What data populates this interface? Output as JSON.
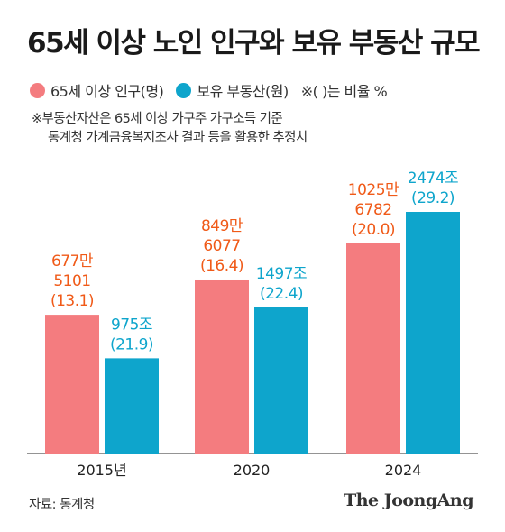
{
  "title": "65세 이상 노인 인구와 보유 부동산 규모",
  "legend": {
    "series1": "65세 이상 인구(명)",
    "series2": "보유 부동산(원)",
    "ratio_note": "※( )는 비율 %"
  },
  "note": {
    "line1": "※부동산자산은 65세 이상 가구주 가구소득 기준",
    "line2": "통계청 가계금융복지조사 결과 등을 활용한 추정치"
  },
  "source": "자료: 통계청",
  "brand": "The JoongAng",
  "colors": {
    "population": "#f47c7f",
    "property": "#0ea5cc",
    "population_text": "#f05a18",
    "property_text": "#0ea5cc"
  },
  "chart_data": {
    "type": "bar",
    "categories": [
      "2015년",
      "2020",
      "2024"
    ],
    "series": [
      {
        "name": "65세 이상 인구(명)",
        "values": [
          677.5101,
          849.6077,
          1025.6782
        ],
        "labels": [
          [
            "677만",
            "5101",
            "(13.1)"
          ],
          [
            "849만",
            "6077",
            "(16.4)"
          ],
          [
            "1025만",
            "6782",
            "(20.0)"
          ]
        ]
      },
      {
        "name": "보유 부동산(원)",
        "values": [
          975,
          1497,
          2474
        ],
        "labels": [
          [
            "975조",
            "(21.9)"
          ],
          [
            "1497조",
            "(22.4)"
          ],
          [
            "2474조",
            "(29.2)"
          ]
        ]
      }
    ]
  }
}
